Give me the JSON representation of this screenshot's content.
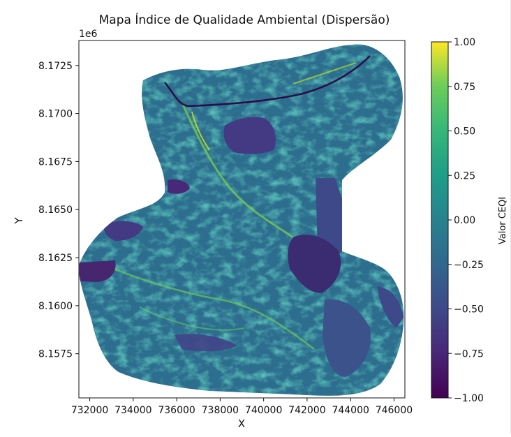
{
  "chart_data": {
    "type": "heatmap",
    "title": "Mapa Índice de Qualidade Ambiental (Dispersão)",
    "xlabel": "X",
    "ylabel": "Y",
    "y_offset_label": "1e6",
    "xlim": [
      731500,
      746500
    ],
    "ylim": [
      8155200,
      8173800
    ],
    "x_tick_labels": [
      "732000",
      "734000",
      "736000",
      "738000",
      "740000",
      "742000",
      "744000",
      "746000"
    ],
    "x_ticks": [
      732000,
      734000,
      736000,
      738000,
      740000,
      742000,
      744000,
      746000
    ],
    "y_tick_labels": [
      "8.1575",
      "8.1600",
      "8.1625",
      "8.1650",
      "8.1675",
      "8.1700",
      "8.1725"
    ],
    "y_ticks": [
      8157500,
      8160000,
      8162500,
      8165000,
      8167500,
      8170000,
      8172500
    ],
    "colorbar": {
      "label": "Valor CEQI",
      "colormap": "viridis",
      "range": [
        -1.0,
        1.0
      ],
      "tick_labels": [
        "1.00",
        "0.75",
        "0.50",
        "0.25",
        "0.00",
        "−0.25",
        "−0.50",
        "−0.75",
        "−1.00"
      ],
      "tick_values": [
        1.0,
        0.75,
        0.5,
        0.25,
        0.0,
        -0.25,
        -0.5,
        -0.75,
        -1.0
      ]
    },
    "colors": {
      "background_value": "#2f6f8e",
      "low": "#440154",
      "mid": "#21918c",
      "high": "#fde725"
    }
  }
}
